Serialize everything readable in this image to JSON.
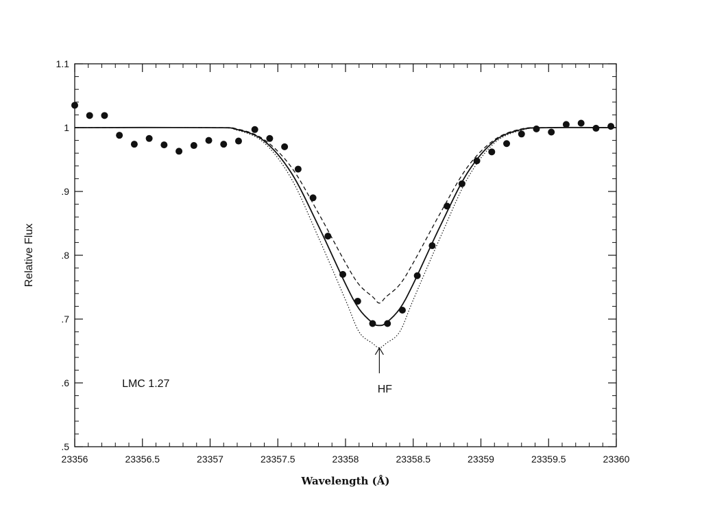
{
  "chart_data": {
    "type": "line",
    "xlabel": "Wavelength (Å)",
    "ylabel": "Relative Flux",
    "xlim": [
      23356,
      23360
    ],
    "ylim": [
      0.5,
      1.1
    ],
    "xticks": [
      23356,
      23356.5,
      23357,
      23357.5,
      23358,
      23358.5,
      23359,
      23359.5,
      23360
    ],
    "xtick_labels": [
      "23356",
      "23356.5",
      "23357",
      "23357.5",
      "23358",
      "23358.5",
      "23359",
      "23359.5",
      "23360"
    ],
    "yticks": [
      0.5,
      0.6,
      0.7,
      0.8,
      0.9,
      1.0,
      1.1
    ],
    "ytick_labels": [
      ".5",
      ".6",
      ".7",
      ".8",
      ".9",
      "1",
      "1.1"
    ],
    "grid": false,
    "series": [
      {
        "style": "solid",
        "x": [
          23356.0,
          23357.0,
          23357.2,
          23357.4,
          23357.6,
          23357.8,
          23358.0,
          23358.1,
          23358.2,
          23358.25,
          23358.3,
          23358.4,
          23358.5,
          23358.7,
          23358.9,
          23359.1,
          23359.3,
          23359.5,
          23360.0
        ],
        "y": [
          1.0,
          1.0,
          0.997,
          0.979,
          0.929,
          0.846,
          0.755,
          0.716,
          0.694,
          0.69,
          0.694,
          0.716,
          0.755,
          0.846,
          0.929,
          0.979,
          0.997,
          1.0,
          1.0
        ]
      },
      {
        "style": "dashed",
        "x": [
          23356.0,
          23357.0,
          23357.2,
          23357.4,
          23357.6,
          23357.8,
          23358.0,
          23358.1,
          23358.2,
          23358.25,
          23358.3,
          23358.4,
          23358.5,
          23358.7,
          23358.9,
          23359.1,
          23359.3,
          23359.5,
          23360.0
        ],
        "y": [
          1.0,
          1.0,
          0.998,
          0.981,
          0.938,
          0.866,
          0.788,
          0.754,
          0.735,
          0.725,
          0.735,
          0.754,
          0.788,
          0.866,
          0.938,
          0.981,
          0.998,
          1.0,
          1.0
        ]
      },
      {
        "style": "dotted",
        "x": [
          23356.0,
          23357.0,
          23357.2,
          23357.4,
          23357.6,
          23357.8,
          23358.0,
          23358.1,
          23358.2,
          23358.25,
          23358.3,
          23358.4,
          23358.5,
          23358.7,
          23358.9,
          23359.1,
          23359.3,
          23359.5,
          23360.0
        ],
        "y": [
          1.0,
          1.0,
          0.996,
          0.976,
          0.92,
          0.828,
          0.73,
          0.68,
          0.662,
          0.655,
          0.662,
          0.68,
          0.73,
          0.828,
          0.92,
          0.976,
          0.996,
          1.0,
          1.0
        ]
      }
    ],
    "points": [
      {
        "x": 23356.0,
        "y": 1.035
      },
      {
        "x": 23356.11,
        "y": 1.019
      },
      {
        "x": 23356.22,
        "y": 1.019
      },
      {
        "x": 23356.33,
        "y": 0.988
      },
      {
        "x": 23356.44,
        "y": 0.974
      },
      {
        "x": 23356.55,
        "y": 0.983
      },
      {
        "x": 23356.66,
        "y": 0.973
      },
      {
        "x": 23356.77,
        "y": 0.963
      },
      {
        "x": 23356.88,
        "y": 0.972
      },
      {
        "x": 23356.99,
        "y": 0.98
      },
      {
        "x": 23357.1,
        "y": 0.974
      },
      {
        "x": 23357.21,
        "y": 0.979
      },
      {
        "x": 23357.33,
        "y": 0.997
      },
      {
        "x": 23357.44,
        "y": 0.983
      },
      {
        "x": 23357.55,
        "y": 0.97
      },
      {
        "x": 23357.65,
        "y": 0.935
      },
      {
        "x": 23357.76,
        "y": 0.89
      },
      {
        "x": 23357.87,
        "y": 0.83
      },
      {
        "x": 23357.98,
        "y": 0.77
      },
      {
        "x": 23358.09,
        "y": 0.728
      },
      {
        "x": 23358.2,
        "y": 0.693
      },
      {
        "x": 23358.31,
        "y": 0.693
      },
      {
        "x": 23358.42,
        "y": 0.714
      },
      {
        "x": 23358.53,
        "y": 0.768
      },
      {
        "x": 23358.64,
        "y": 0.815
      },
      {
        "x": 23358.75,
        "y": 0.877
      },
      {
        "x": 23358.86,
        "y": 0.912
      },
      {
        "x": 23358.97,
        "y": 0.948
      },
      {
        "x": 23359.08,
        "y": 0.962
      },
      {
        "x": 23359.19,
        "y": 0.975
      },
      {
        "x": 23359.3,
        "y": 0.99
      },
      {
        "x": 23359.41,
        "y": 0.998
      },
      {
        "x": 23359.52,
        "y": 0.993
      },
      {
        "x": 23359.63,
        "y": 1.005
      },
      {
        "x": 23359.74,
        "y": 1.007
      },
      {
        "x": 23359.85,
        "y": 0.999
      },
      {
        "x": 23359.96,
        "y": 1.002
      }
    ],
    "annotations": [
      {
        "text": "LMC 1.27",
        "x": 23356.5,
        "y": 0.6
      },
      {
        "text": "HF",
        "x": 23358.25,
        "y": 0.585,
        "arrow_to_y": 0.657
      }
    ]
  }
}
